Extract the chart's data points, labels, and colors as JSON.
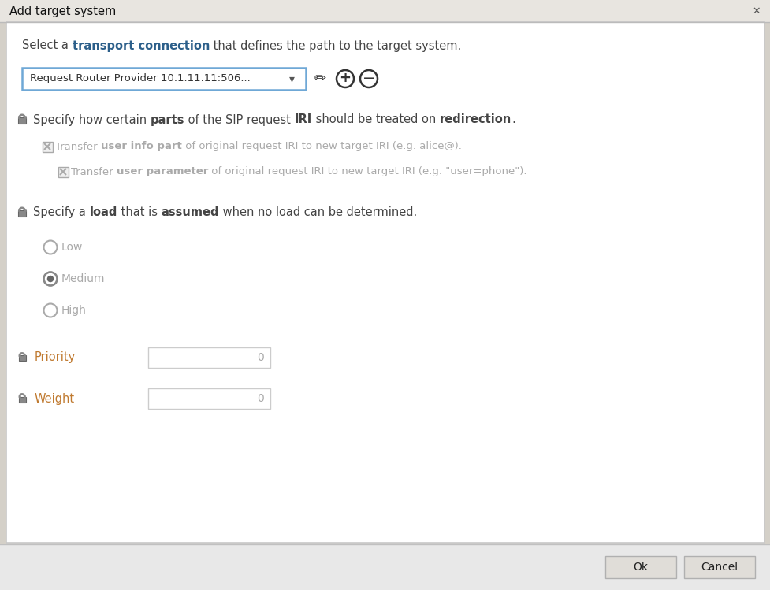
{
  "title": "Add target system",
  "bg_outer": "#d4d0c8",
  "bg_dialog": "#f0f0f0",
  "bg_white": "#ffffff",
  "bg_footer": "#e8e8e8",
  "border_color": "#aaaaaa",
  "title_bar_bg": "#e0ddd8",
  "title_color": "#000000",
  "text_color": "#333333",
  "text_dark": "#2c3e50",
  "gray_text": "#999999",
  "blue_border": "#6fa8d6",
  "dropdown_text": "Request Router Provider 10.1.11.11:506...",
  "btn_ok": "Ok",
  "btn_cancel": "Cancel"
}
